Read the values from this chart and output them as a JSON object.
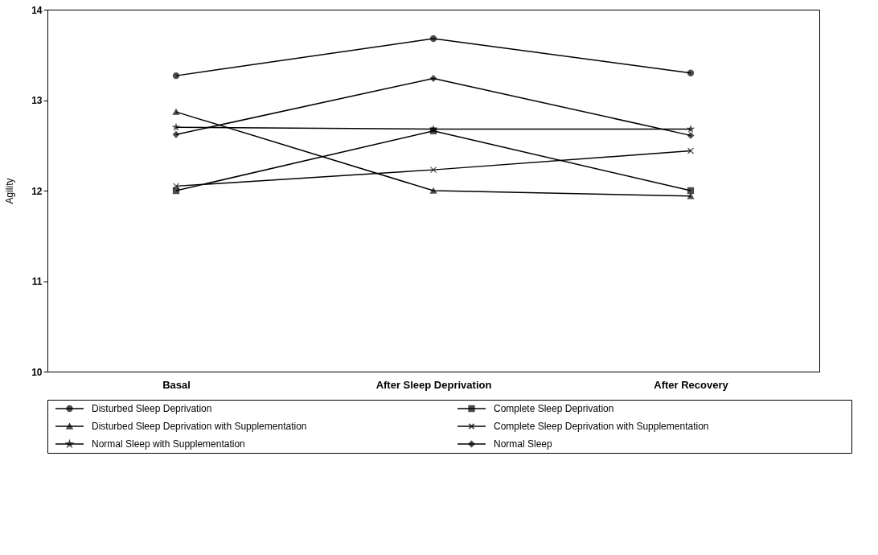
{
  "chart_data": {
    "type": "line",
    "ylabel": "Agility",
    "categories": [
      "Basal",
      "After Sleep Deprivation",
      "After Recovery"
    ],
    "ylim": [
      10,
      14
    ],
    "yticks": [
      10,
      11,
      12,
      13,
      14
    ],
    "grid": false,
    "legend": "bottom",
    "line_style": "solid",
    "series": [
      {
        "name": "Disturbed Sleep Deprivation",
        "color": "#000000",
        "marker": "circle",
        "values": [
          13.27,
          13.68,
          13.3
        ]
      },
      {
        "name": "Complete Sleep Deprivation",
        "color": "#000000",
        "marker": "square",
        "values": [
          12.0,
          12.66,
          12.0
        ]
      },
      {
        "name": "Disturbed Sleep Deprivation with Supplementation",
        "color": "#000000",
        "marker": "triangle",
        "values": [
          12.87,
          12.0,
          11.94
        ]
      },
      {
        "name": "Complete Sleep Deprivation with Supplementation",
        "color": "#000000",
        "marker": "cross",
        "values": [
          12.05,
          12.23,
          12.44
        ]
      },
      {
        "name": "Normal Sleep with Supplementation",
        "color": "#000000",
        "marker": "star",
        "values": [
          12.7,
          12.68,
          12.68
        ]
      },
      {
        "name": "Normal Sleep",
        "color": "#000000",
        "marker": "diamond",
        "values": [
          12.62,
          13.24,
          12.61
        ]
      }
    ]
  }
}
